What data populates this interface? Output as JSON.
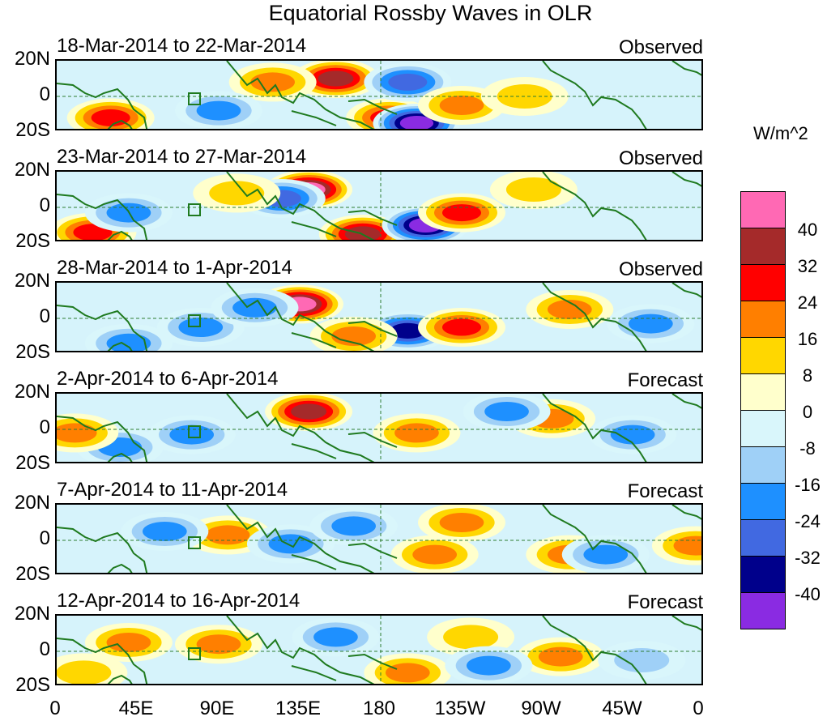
{
  "title": "Equatorial Rossby Waves in OLR",
  "y_axis_labels": [
    "20N",
    "0",
    "20S"
  ],
  "x_axis_labels": [
    "0",
    "45E",
    "90E",
    "135E",
    "180",
    "135W",
    "90W",
    "45W",
    "0"
  ],
  "colorbar": {
    "unit": "W/m^2",
    "levels": [
      "40",
      "32",
      "24",
      "16",
      "8",
      "0",
      "-8",
      "-16",
      "-24",
      "-32",
      "-40"
    ],
    "colors": [
      "#ff69b4",
      "#a52a2a",
      "#ff0000",
      "#ff7f00",
      "#ffd700",
      "#ffffcc",
      "#d9f6fb",
      "#9fd0f7",
      "#1e90ff",
      "#4169e1",
      "#00008b",
      "#8a2be2"
    ]
  },
  "panels": [
    {
      "dates": "18-Mar-2014 to 22-Mar-2014",
      "status": "Observed"
    },
    {
      "dates": "23-Mar-2014 to 27-Mar-2014",
      "status": "Observed"
    },
    {
      "dates": "28-Mar-2014 to 1-Apr-2014",
      "status": "Observed"
    },
    {
      "dates": "2-Apr-2014 to 6-Apr-2014",
      "status": "Forecast"
    },
    {
      "dates": "7-Apr-2014 to 11-Apr-2014",
      "status": "Forecast"
    },
    {
      "dates": "12-Apr-2014 to 16-Apr-2014",
      "status": "Forecast"
    }
  ],
  "anomalies": [
    [
      {
        "lon": 30,
        "lat": -12,
        "v": 24
      },
      {
        "lon": 155,
        "lat": 10,
        "v": 32
      },
      {
        "lon": 185,
        "lat": -12,
        "v": 24
      },
      {
        "lon": 200,
        "lat": -15,
        "v": -40
      },
      {
        "lon": 195,
        "lat": 8,
        "v": -24
      },
      {
        "lon": 120,
        "lat": 8,
        "v": 16
      },
      {
        "lon": 225,
        "lat": -5,
        "v": 16
      },
      {
        "lon": 90,
        "lat": -8,
        "v": -16
      },
      {
        "lon": 260,
        "lat": 0,
        "v": 8
      }
    ],
    [
      {
        "lon": 20,
        "lat": -14,
        "v": 24
      },
      {
        "lon": 140,
        "lat": 10,
        "v": 40
      },
      {
        "lon": 170,
        "lat": -15,
        "v": 32
      },
      {
        "lon": 205,
        "lat": -10,
        "v": -40
      },
      {
        "lon": 125,
        "lat": 5,
        "v": -24
      },
      {
        "lon": 225,
        "lat": -3,
        "v": 24
      },
      {
        "lon": 40,
        "lat": -3,
        "v": -16
      },
      {
        "lon": 265,
        "lat": 10,
        "v": 8
      },
      {
        "lon": 100,
        "lat": 8,
        "v": 8
      }
    ],
    [
      {
        "lon": 135,
        "lat": 8,
        "v": 40
      },
      {
        "lon": 195,
        "lat": -7,
        "v": -32
      },
      {
        "lon": 225,
        "lat": -5,
        "v": 24
      },
      {
        "lon": 165,
        "lat": -10,
        "v": 16
      },
      {
        "lon": 80,
        "lat": -5,
        "v": -16
      },
      {
        "lon": 40,
        "lat": -14,
        "v": -16
      },
      {
        "lon": 285,
        "lat": 5,
        "v": 16
      },
      {
        "lon": 330,
        "lat": -3,
        "v": -16
      },
      {
        "lon": 110,
        "lat": 6,
        "v": -16
      }
    ],
    [
      {
        "lon": 140,
        "lat": 10,
        "v": 32
      },
      {
        "lon": 200,
        "lat": -2,
        "v": 16
      },
      {
        "lon": 275,
        "lat": 6,
        "v": 16
      },
      {
        "lon": 75,
        "lat": -3,
        "v": -16
      },
      {
        "lon": 35,
        "lat": -10,
        "v": -16
      },
      {
        "lon": 320,
        "lat": -3,
        "v": -16
      },
      {
        "lon": 10,
        "lat": -2,
        "v": 16
      },
      {
        "lon": 250,
        "lat": 10,
        "v": -16
      }
    ],
    [
      {
        "lon": 95,
        "lat": 3,
        "v": 16
      },
      {
        "lon": 210,
        "lat": -8,
        "v": 16
      },
      {
        "lon": 225,
        "lat": 10,
        "v": 16
      },
      {
        "lon": 285,
        "lat": -8,
        "v": 16
      },
      {
        "lon": 130,
        "lat": -2,
        "v": -16
      },
      {
        "lon": 60,
        "lat": 5,
        "v": -16
      },
      {
        "lon": 305,
        "lat": -8,
        "v": -16
      },
      {
        "lon": 355,
        "lat": -3,
        "v": 16
      },
      {
        "lon": 165,
        "lat": 8,
        "v": -16
      }
    ],
    [
      {
        "lon": 90,
        "lat": 4,
        "v": 16
      },
      {
        "lon": 195,
        "lat": -12,
        "v": 16
      },
      {
        "lon": 280,
        "lat": -3,
        "v": 16
      },
      {
        "lon": 40,
        "lat": 5,
        "v": 16
      },
      {
        "lon": 230,
        "lat": 8,
        "v": 8
      },
      {
        "lon": 155,
        "lat": 8,
        "v": -16
      },
      {
        "lon": 240,
        "lat": -8,
        "v": -16
      },
      {
        "lon": 325,
        "lat": -5,
        "v": -8
      },
      {
        "lon": 15,
        "lat": -12,
        "v": 8
      }
    ]
  ]
}
